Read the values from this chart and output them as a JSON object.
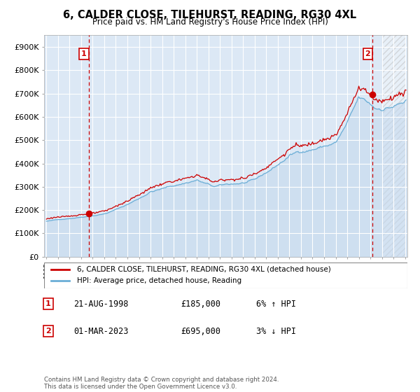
{
  "title": "6, CALDER CLOSE, TILEHURST, READING, RG30 4XL",
  "subtitle": "Price paid vs. HM Land Registry's House Price Index (HPI)",
  "ylim": [
    0,
    950000
  ],
  "yticks": [
    0,
    100000,
    200000,
    300000,
    400000,
    500000,
    600000,
    700000,
    800000,
    900000
  ],
  "ytick_labels": [
    "£0",
    "£100K",
    "£200K",
    "£300K",
    "£400K",
    "£500K",
    "£600K",
    "£700K",
    "£800K",
    "£900K"
  ],
  "sale1_date": 1998.65,
  "sale1_price": 185000,
  "sale1_label": "1",
  "sale2_date": 2023.17,
  "sale2_price": 695000,
  "sale2_label": "2",
  "sale_color": "#cc0000",
  "hpi_fill_color": "#c5d9ee",
  "hpi_line_color": "#6aaed6",
  "plot_bg": "#dce8f5",
  "legend_label1": "6, CALDER CLOSE, TILEHURST, READING, RG30 4XL (detached house)",
  "legend_label2": "HPI: Average price, detached house, Reading",
  "note1_num": "1",
  "note1_date": "21-AUG-1998",
  "note1_price": "£185,000",
  "note1_hpi": "6% ↑ HPI",
  "note2_num": "2",
  "note2_date": "01-MAR-2023",
  "note2_price": "£695,000",
  "note2_hpi": "3% ↓ HPI",
  "footer": "Contains HM Land Registry data © Crown copyright and database right 2024.\nThis data is licensed under the Open Government Licence v3.0.",
  "xlim_left": 1994.8,
  "xlim_right": 2026.2
}
